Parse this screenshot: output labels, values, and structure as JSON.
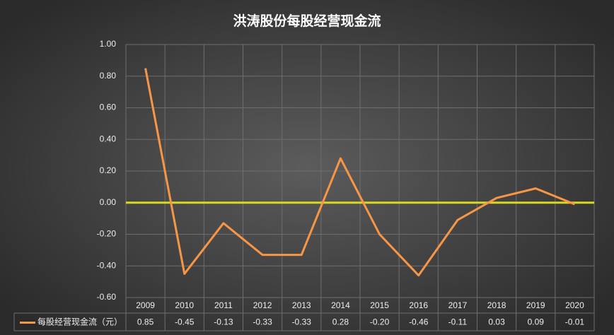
{
  "chart_data": {
    "type": "line",
    "title": "洪涛股份每股经营现金流",
    "categories": [
      "2009",
      "2010",
      "2011",
      "2012",
      "2013",
      "2014",
      "2015",
      "2016",
      "2017",
      "2018",
      "2019",
      "2020"
    ],
    "series": [
      {
        "name": "每股经营现金流（元）",
        "color": "#f79646",
        "values": [
          0.85,
          -0.45,
          -0.13,
          -0.33,
          -0.33,
          0.28,
          -0.2,
          -0.46,
          -0.11,
          0.03,
          0.09,
          -0.01
        ],
        "value_labels": [
          "0.85",
          "-0.45",
          "-0.13",
          "-0.33",
          "-0.33",
          "0.28",
          "-0.20",
          "-0.46",
          "-0.11",
          "0.03",
          "0.09",
          "-0.01"
        ]
      }
    ],
    "ylim": [
      -0.6,
      1.0
    ],
    "yticks": [
      {
        "value": -0.6,
        "label": "-0.60"
      },
      {
        "value": -0.4,
        "label": "-0.40"
      },
      {
        "value": -0.2,
        "label": "-0.20"
      },
      {
        "value": 0,
        "label": "0.00"
      },
      {
        "value": 0.2,
        "label": "0.20"
      },
      {
        "value": 0.4,
        "label": "0.40"
      },
      {
        "value": 0.6,
        "label": "0.60"
      },
      {
        "value": 0.8,
        "label": "0.80"
      },
      {
        "value": 1.0,
        "label": "1.00"
      }
    ],
    "grid": true,
    "zero_line_color": "#d8d820"
  }
}
